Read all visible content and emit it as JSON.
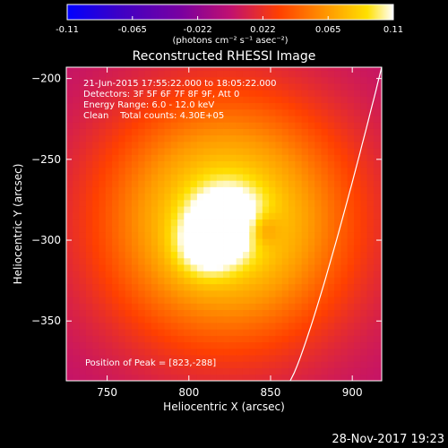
{
  "colorbar": {
    "ticks": [
      "-0.11",
      "-0.065",
      "-0.022",
      "0.022",
      "0.065",
      "0.11"
    ],
    "units_label": "(photons cm⁻² s⁻¹ asec⁻²)",
    "colormap": [
      "#0000ff",
      "#3a00c8",
      "#7a00a0",
      "#c01070",
      "#ff4000",
      "#ff9a00",
      "#ffe000",
      "#ffffff"
    ]
  },
  "chart_data": {
    "type": "heatmap",
    "title": "Reconstructed RHESSI Image",
    "xlabel": "Heliocentric X (arcsec)",
    "ylabel": "Heliocentric Y (arcsec)",
    "xlim": [
      725,
      918
    ],
    "ylim": [
      -387,
      -193
    ],
    "xticks": [
      750,
      800,
      850,
      900
    ],
    "yticks": [
      -200,
      -250,
      -300,
      -350
    ],
    "peak": [
      823,
      -288
    ],
    "annotations": [
      "21-Jun-2015 17:55:22.000 to 18:05:22.000",
      "Detectors: 3F 5F 6F 7F 8F 9F, Att 0",
      "Energy Range: 6.0 - 12.0 keV",
      "Clean    Total counts: 4.30E+05"
    ],
    "peak_label": "Position of Peak = [823,-288]"
  },
  "footer_timestamp": "28-Nov-2017 19:23"
}
